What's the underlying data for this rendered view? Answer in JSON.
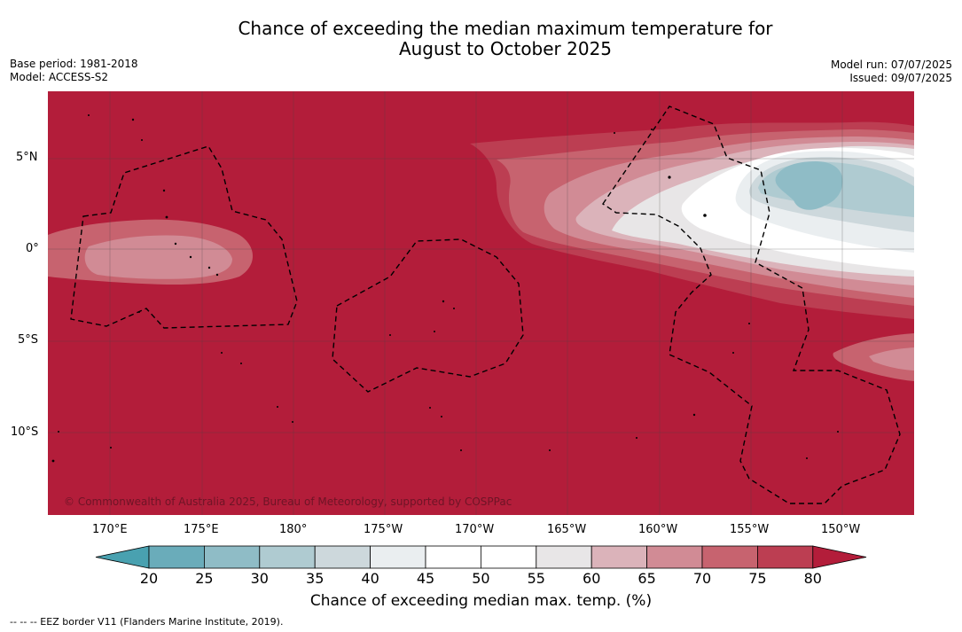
{
  "title": {
    "line1": "Chance of exceeding the median maximum temperature for",
    "line2": "August to October 2025"
  },
  "meta_left": {
    "base_period": "Base period: 1981-2018",
    "model": "Model: ACCESS-S2"
  },
  "meta_right": {
    "model_run": "Model run: 07/07/2025",
    "issued": "Issued: 09/07/2025"
  },
  "map": {
    "copyright": "© Commonwealth of Australia 2025, Bureau of Meteorology, supported by COSPPac",
    "lat_labels": [
      "5°N",
      "0°",
      "5°S",
      "10°S"
    ],
    "lon_labels": [
      "170°E",
      "175°E",
      "180°",
      "175°W",
      "170°W",
      "165°W",
      "160°W",
      "155°W",
      "150°W"
    ],
    "background_color": "#b31d3a",
    "land_color": "#000000"
  },
  "colorbar": {
    "ticks": [
      "20",
      "25",
      "30",
      "35",
      "40",
      "45",
      "50",
      "55",
      "60",
      "65",
      "70",
      "75",
      "80"
    ],
    "colors": [
      "#49a1b0",
      "#6aacba",
      "#8fbcc6",
      "#afcbd1",
      "#cdd8dc",
      "#eaeef0",
      "#ffffff",
      "#ffffff",
      "#e8e6e7",
      "#dbb3ba",
      "#d18b95",
      "#c7636f",
      "#bc3e52",
      "#b31d3a"
    ],
    "label": "Chance of exceeding median max. temp. (%)"
  },
  "footnote": "-- -- -- EEZ border V11 (Flanders Marine Institute, 2019)."
}
